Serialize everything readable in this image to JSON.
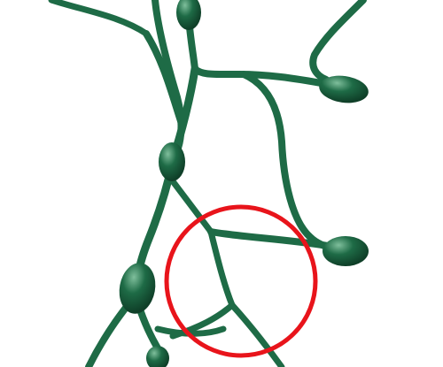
{
  "colors": {
    "background": "#ffffff",
    "vessel": "#1e6b46",
    "vessel_dark": "#0f3f28",
    "vessel_highlight": "#7fbf9c",
    "highlight_ring": "#e8141b"
  },
  "icons": {
    "branch": "branch-network-icon",
    "node": "swollen-node-icon",
    "ring": "circle-highlight-icon"
  }
}
